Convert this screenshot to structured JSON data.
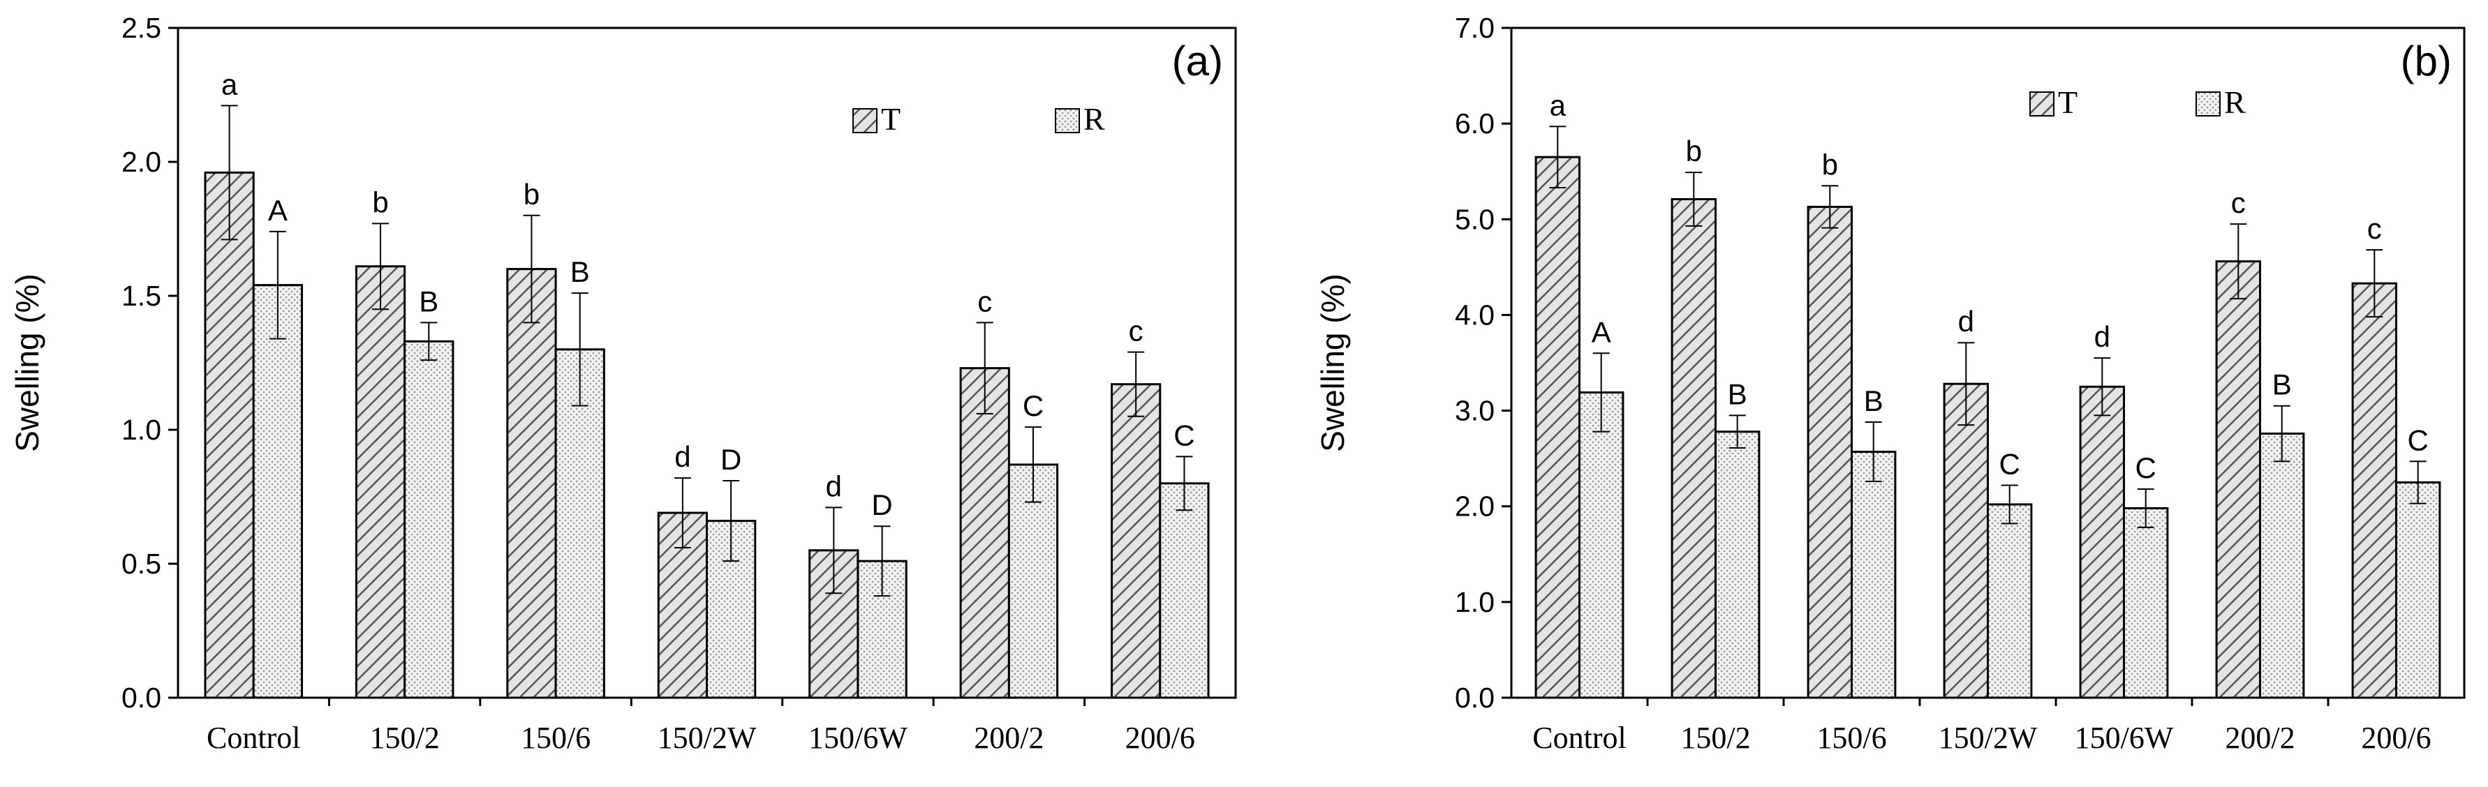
{
  "chart_data": [
    {
      "type": "bar",
      "panel_label": "(a)",
      "ylabel": "Swelling (%)",
      "ylim": [
        0,
        2.5
      ],
      "yticks": [
        "0.0",
        "0.5",
        "1.0",
        "1.5",
        "2.0",
        "2.5"
      ],
      "ytick_values": [
        0,
        0.5,
        1.0,
        1.5,
        2.0,
        2.5
      ],
      "categories": [
        "Control",
        "150/2",
        "150/6",
        "150/2W",
        "150/6W",
        "200/2",
        "200/6"
      ],
      "legend": [
        "T",
        "R"
      ],
      "legend_position": "top-right",
      "series": [
        {
          "name": "T",
          "values": [
            1.96,
            1.61,
            1.6,
            0.69,
            0.55,
            1.23,
            1.17
          ],
          "errors": [
            0.25,
            0.16,
            0.2,
            0.13,
            0.16,
            0.17,
            0.12
          ],
          "labels": [
            "a",
            "b",
            "b",
            "d",
            "d",
            "c",
            "c"
          ]
        },
        {
          "name": "R",
          "values": [
            1.54,
            1.33,
            1.3,
            0.66,
            0.51,
            0.87,
            0.8
          ],
          "errors": [
            0.2,
            0.07,
            0.21,
            0.15,
            0.13,
            0.14,
            0.1
          ],
          "labels": [
            "A",
            "B",
            "B",
            "D",
            "D",
            "C",
            "C"
          ]
        }
      ]
    },
    {
      "type": "bar",
      "panel_label": "(b)",
      "ylabel": "Swelling (%)",
      "ylim": [
        0,
        7.0
      ],
      "yticks": [
        "0.0",
        "1.0",
        "2.0",
        "3.0",
        "4.0",
        "5.0",
        "6.0",
        "7.0"
      ],
      "ytick_values": [
        0,
        1,
        2,
        3,
        4,
        5,
        6,
        7
      ],
      "categories": [
        "Control",
        "150/2",
        "150/6",
        "150/2W",
        "150/6W",
        "200/2",
        "200/6"
      ],
      "legend": [
        "T",
        "R"
      ],
      "legend_position": "top-right",
      "series": [
        {
          "name": "T",
          "values": [
            5.65,
            5.21,
            5.13,
            3.28,
            3.25,
            4.56,
            4.33
          ],
          "errors": [
            0.32,
            0.28,
            0.22,
            0.43,
            0.3,
            0.39,
            0.35
          ],
          "labels": [
            "a",
            "b",
            "b",
            "d",
            "d",
            "c",
            "c"
          ]
        },
        {
          "name": "R",
          "values": [
            3.19,
            2.78,
            2.57,
            2.02,
            1.98,
            2.76,
            2.25
          ],
          "errors": [
            0.41,
            0.17,
            0.31,
            0.2,
            0.2,
            0.29,
            0.22
          ],
          "labels": [
            "A",
            "B",
            "B",
            "C",
            "C",
            "B",
            "C"
          ]
        }
      ]
    }
  ]
}
